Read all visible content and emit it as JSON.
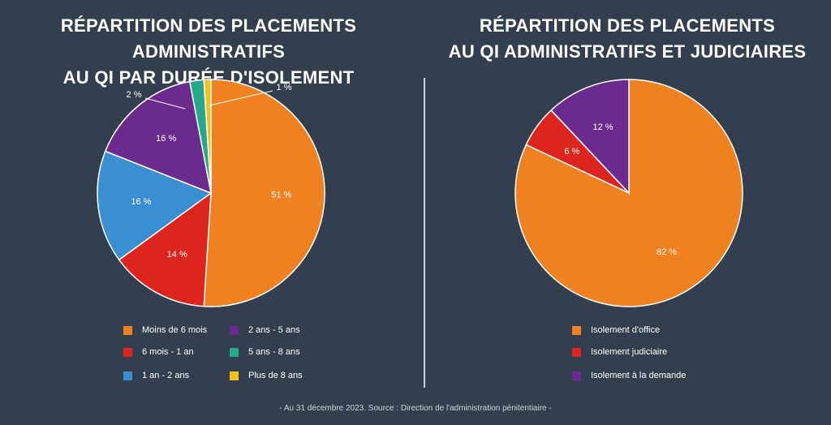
{
  "chart_data": [
    {
      "type": "pie",
      "title_line1": "Répartition des placements administratifs",
      "title_line2": "au QI par durée d'isolement",
      "slices": [
        {
          "label": "Moins de 6 mois",
          "value": 51,
          "display": "51 %",
          "color": "#ef8121"
        },
        {
          "label": "6 mois - 1 an",
          "value": 14,
          "display": "14 %",
          "color": "#dd241d"
        },
        {
          "label": "1 an - 2 ans",
          "value": 16,
          "display": "16 %",
          "color": "#3a8fd2"
        },
        {
          "label": "2 ans - 5 ans",
          "value": 16,
          "display": "16 %",
          "color": "#6b2a8e"
        },
        {
          "label": "5 ans - 8 ans",
          "value": 2,
          "display": "2 %",
          "color": "#25a98a"
        },
        {
          "label": "Plus de 8 ans",
          "value": 1,
          "display": "1 %",
          "color": "#f3c21c"
        }
      ],
      "legend_placement": "bottom"
    },
    {
      "type": "pie",
      "title_line1": "Répartition des placements",
      "title_line2": "au QI administratifs et judiciaires",
      "slices": [
        {
          "label": "Isolement d'office",
          "value": 82,
          "display": "82 %",
          "color": "#ef8121"
        },
        {
          "label": "Isolement judiciaire",
          "value": 6,
          "display": "6 %",
          "color": "#dd241d"
        },
        {
          "label": "Isolement à la demande",
          "value": 12,
          "display": "12 %",
          "color": "#6b2a8e"
        }
      ],
      "legend_placement": "bottom"
    }
  ],
  "footer": "- Au 31 décembre 2023. Source : Direction de l'administration pénitentiaire -"
}
